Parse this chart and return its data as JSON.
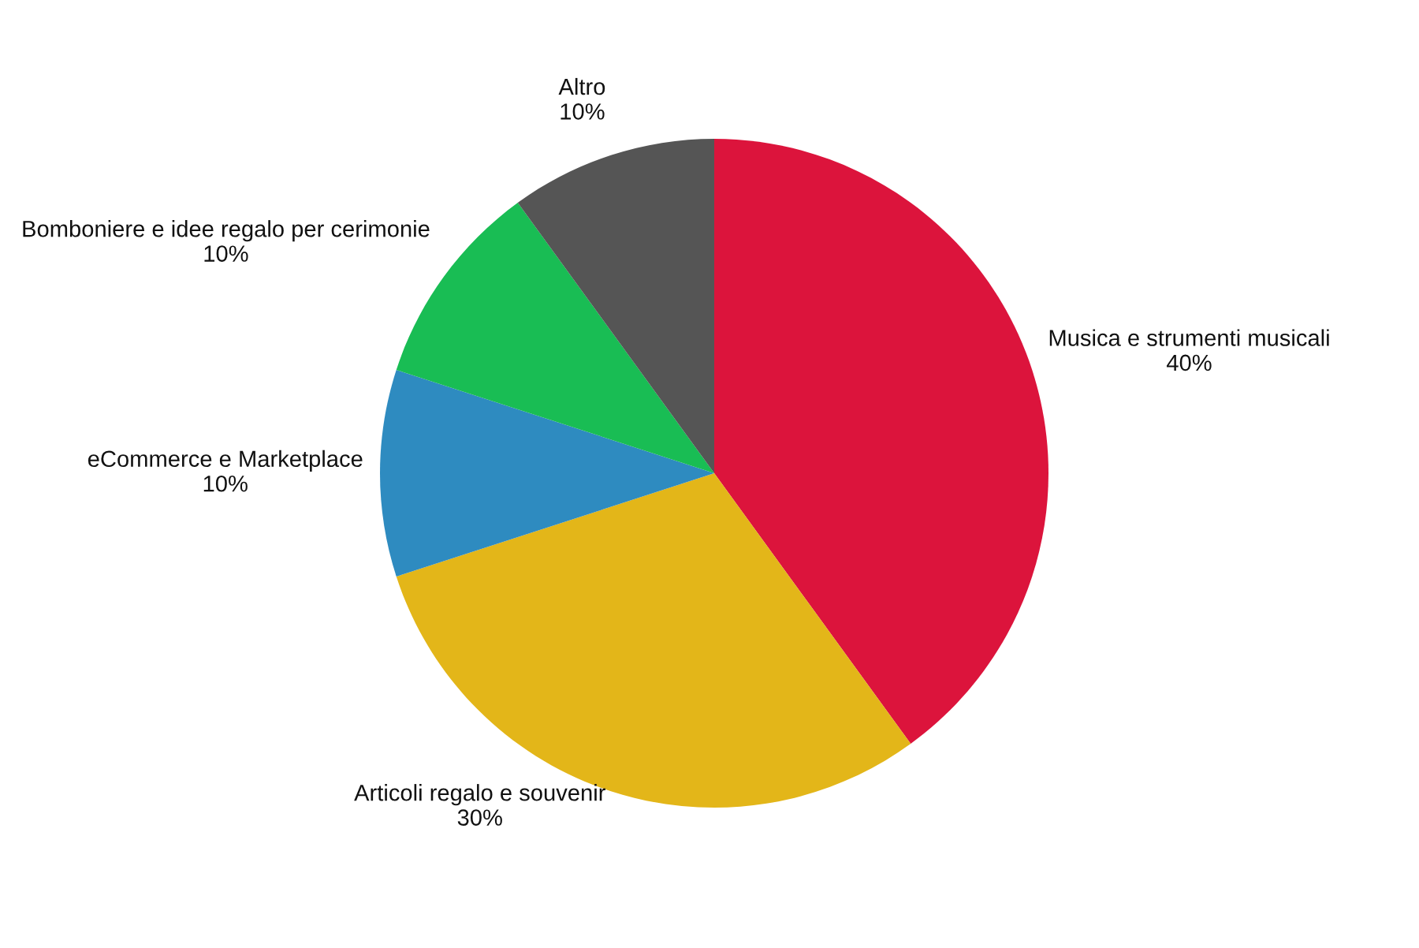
{
  "chart_data": {
    "type": "pie",
    "categories": [
      "Musica e strumenti musicali",
      "Articoli regalo e souvenir",
      "eCommerce e Marketplace",
      "Bomboniere e idee regalo per cerimonie",
      "Altro"
    ],
    "values": [
      40,
      30,
      10,
      10,
      10
    ],
    "value_labels": [
      "40%",
      "30%",
      "10%",
      "10%",
      "10%"
    ],
    "colors": [
      "#dc143c",
      "#e3b619",
      "#2e8bc0",
      "#19bd54",
      "#555555"
    ],
    "legend": false
  }
}
